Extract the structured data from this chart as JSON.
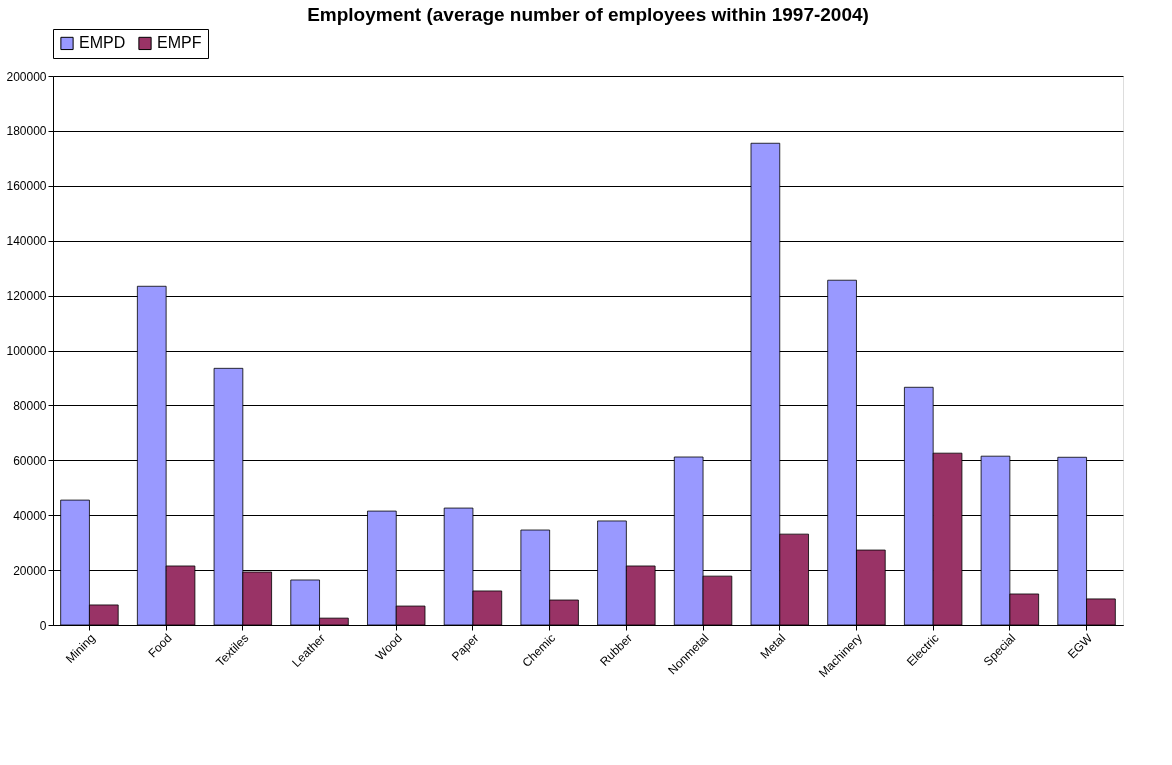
{
  "chart_data": {
    "type": "bar",
    "title": "Employment (average number of employees within 1997-2004)",
    "categories": [
      "Mining",
      "Food",
      "Textiles",
      "Leather",
      "Wood",
      "Paper",
      "Chemic",
      "Rubber",
      "Nonmetal",
      "Metal",
      "Machinery",
      "Electric",
      "Special",
      "EGW"
    ],
    "series": [
      {
        "name": "EMPD",
        "color": "#9999ff",
        "values": [
          45500,
          123400,
          93500,
          16400,
          41500,
          42600,
          34600,
          37900,
          61200,
          175500,
          125600,
          86600,
          61500,
          61100
        ]
      },
      {
        "name": "EMPF",
        "color": "#993366",
        "values": [
          7300,
          21500,
          19300,
          2500,
          6900,
          12400,
          9100,
          21500,
          17800,
          33100,
          27300,
          62600,
          11300,
          9500
        ]
      }
    ],
    "ylim": [
      0,
      200000
    ],
    "yticks": [
      0,
      20000,
      40000,
      60000,
      80000,
      100000,
      120000,
      140000,
      160000,
      180000,
      200000
    ],
    "grid": "y",
    "legend": "top"
  }
}
